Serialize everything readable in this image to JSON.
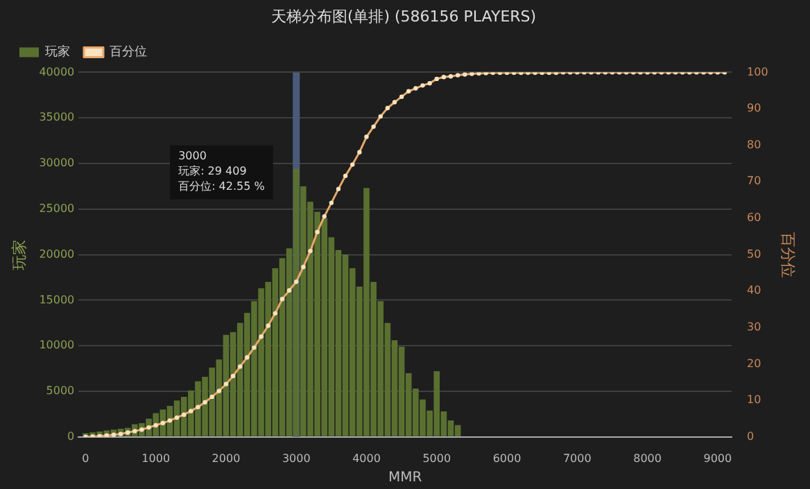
{
  "chart_data": {
    "type": "bar",
    "title": "天梯分布图(单排) (586156 PLAYERS)",
    "xlabel": "MMR",
    "ylabel": "玩家",
    "y2label": "百分位",
    "x": [
      0,
      100,
      200,
      300,
      400,
      500,
      600,
      700,
      800,
      900,
      1000,
      1100,
      1200,
      1300,
      1400,
      1500,
      1600,
      1700,
      1800,
      1900,
      2000,
      2100,
      2200,
      2300,
      2400,
      2500,
      2600,
      2700,
      2800,
      2900,
      3000,
      3100,
      3200,
      3300,
      3400,
      3500,
      3600,
      3700,
      3800,
      3900,
      4000,
      4100,
      4200,
      4300,
      4400,
      4500,
      4600,
      4700,
      4800,
      4900,
      5000,
      5100,
      5200,
      5300,
      5400,
      5500,
      5600,
      5700,
      5800,
      5900,
      6000,
      6100,
      6200,
      6300,
      6400,
      6500,
      6600,
      6700,
      6800,
      6900,
      7000,
      7100,
      7200,
      7300,
      7400,
      7500,
      7600,
      7700,
      7800,
      7900,
      8000,
      8100,
      8200,
      8300,
      8400,
      8500,
      8600,
      8700,
      8800,
      8900,
      9000,
      9100
    ],
    "series": [
      {
        "name": "玩家",
        "color": "#5a7030",
        "values": [
          400,
          500,
          600,
          700,
          800,
          900,
          1000,
          1400,
          1500,
          2000,
          2600,
          3000,
          3400,
          4000,
          4400,
          5100,
          6100,
          6600,
          7600,
          8500,
          11200,
          11500,
          12500,
          13600,
          14900,
          16300,
          17000,
          18500,
          19600,
          20700,
          29409,
          27500,
          25800,
          24700,
          24000,
          21900,
          20500,
          20000,
          18500,
          16500,
          27300,
          17000,
          14900,
          12500,
          10600,
          9900,
          7000,
          5300,
          4100,
          2900,
          7200,
          2800,
          1800,
          1300,
          null,
          null,
          null,
          null,
          null,
          null,
          null,
          null,
          null,
          null,
          null,
          null,
          null,
          null,
          null,
          null,
          null,
          null,
          null,
          null,
          null,
          null,
          null,
          null,
          null,
          null,
          null,
          null,
          null,
          null,
          null,
          null,
          null,
          null,
          null,
          null,
          null,
          null
        ]
      },
      {
        "name": "百分位",
        "type": "line",
        "axis": "y2",
        "color": "#e8a868",
        "values": [
          0,
          0.1,
          0.2,
          0.4,
          0.6,
          0.8,
          1.2,
          1.6,
          2.0,
          2.6,
          3.2,
          3.8,
          4.5,
          5.3,
          6.1,
          7.1,
          8.2,
          9.5,
          11.0,
          12.6,
          14.5,
          16.7,
          19.3,
          21.8,
          24.5,
          27.5,
          30.5,
          33.9,
          37.8,
          40.2,
          42.55,
          46.6,
          51.0,
          56.2,
          60.5,
          64.2,
          68.0,
          71.6,
          74.7,
          78.1,
          82.3,
          85.1,
          87.9,
          90.2,
          91.8,
          93.3,
          94.8,
          95.6,
          96.4,
          97.0,
          98.2,
          98.7,
          98.9,
          99.2,
          99.4,
          99.6,
          99.7,
          99.8,
          99.9,
          99.9,
          99.9,
          99.9,
          99.9,
          99.9,
          99.9,
          99.9,
          99.9,
          99.9,
          100,
          100,
          100,
          100,
          100,
          100,
          100,
          100,
          100,
          100,
          100,
          100,
          100,
          100,
          100,
          100,
          100,
          100,
          100,
          100,
          100,
          100,
          100,
          100
        ]
      }
    ],
    "xlim": [
      -100,
      9200
    ],
    "xticks": [
      0,
      1000,
      2000,
      3000,
      4000,
      5000,
      6000,
      7000,
      8000,
      9000
    ],
    "ylim": [
      0,
      40000
    ],
    "yticks": [
      0,
      5000,
      10000,
      15000,
      20000,
      25000,
      30000,
      35000,
      40000
    ],
    "y2lim": [
      0,
      100
    ],
    "y2ticks": [
      0,
      10,
      20,
      30,
      40,
      50,
      60,
      70,
      80,
      90,
      100
    ],
    "bands": [
      {
        "axis": "x",
        "from": 2950,
        "to": 3050,
        "color": "#4a5a78"
      }
    ],
    "annotations": [
      "3000",
      "玩家: 29 409",
      "百分位: 42.55 %"
    ],
    "grid": "y",
    "legend": "top left",
    "marker": "circle",
    "line_style": "solid"
  }
}
